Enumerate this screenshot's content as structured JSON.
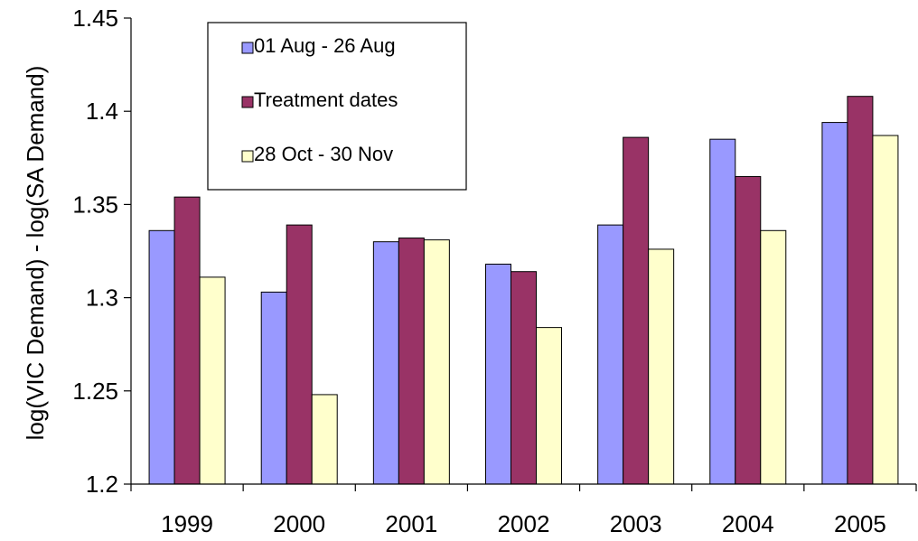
{
  "chart_data": {
    "type": "bar",
    "title": "",
    "xlabel": "",
    "ylabel": "log(VIC Demand) - log(SA Demand)",
    "ylim": [
      1.2,
      1.45
    ],
    "yticks": [
      "1.2",
      "1.25",
      "1.3",
      "1.35",
      "1.4",
      "1.45"
    ],
    "categories": [
      "1999",
      "2000",
      "2001",
      "2002",
      "2003",
      "2004",
      "2005"
    ],
    "grid": false,
    "legend_position": "top-left",
    "series": [
      {
        "name": "01 Aug - 26 Aug",
        "color": "#9999ff",
        "values": [
          1.336,
          1.303,
          1.33,
          1.318,
          1.339,
          1.385,
          1.394
        ]
      },
      {
        "name": "Treatment dates",
        "color": "#993366",
        "values": [
          1.354,
          1.339,
          1.332,
          1.314,
          1.386,
          1.365,
          1.408
        ]
      },
      {
        "name": "28 Oct - 30 Nov",
        "color": "#ffffcc",
        "values": [
          1.311,
          1.248,
          1.331,
          1.284,
          1.326,
          1.336,
          1.387
        ]
      }
    ]
  }
}
